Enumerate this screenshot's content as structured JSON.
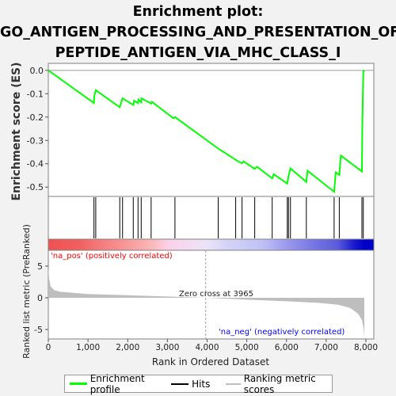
{
  "title_lines": [
    "Enrichment plot:",
    "GO_ANTIGEN_PROCESSING_AND_PRESENTATION_OF_",
    "PEPTIDE_ANTIGEN_VIA_MHC_CLASS_I"
  ],
  "colors": {
    "enrichment_line": "#00ff00",
    "hit_line": "#000000",
    "metric_fill": "#bebebe",
    "zero_line": "#a0a0a0",
    "positive_label": "#ff0000",
    "negative_label": "#0000ff",
    "background": "#f2f2f2"
  },
  "legend": {
    "items": [
      {
        "label": "Enrichment profile",
        "color": "#00ff00",
        "icon": "green-line"
      },
      {
        "label": "Hits",
        "color": "#000000",
        "icon": "black-line"
      },
      {
        "label": "Ranking metric scores",
        "color": "#bebebe",
        "icon": "gray-line"
      }
    ]
  },
  "chart_data": [
    {
      "type": "line",
      "panel": "enrichment",
      "ylabel": "Enrichment score (ES)",
      "ylim": [
        -0.54,
        0.03
      ],
      "xlim": [
        0,
        8200
      ],
      "yticks": [
        0.0,
        -0.1,
        -0.2,
        -0.3,
        -0.4,
        -0.5
      ],
      "ytick_labels": [
        "0.0",
        "-0.1",
        "-0.2",
        "-0.3",
        "-0.4",
        "-0.5"
      ],
      "series": [
        {
          "x": [
            0,
            1150,
            1160,
            1195,
            1800,
            1870,
            2140,
            2160,
            2260,
            2270,
            2340,
            2345,
            2590,
            2610,
            3150,
            3190,
            4280,
            4720,
            4780,
            4880,
            4920,
            5200,
            5260,
            5640,
            5680,
            6020,
            6050,
            6100,
            6500,
            6530,
            7200,
            7240,
            7330,
            7370,
            7900,
            7910,
            7935,
            7960
          ],
          "y": [
            0.0,
            -0.14,
            -0.11,
            -0.085,
            -0.158,
            -0.12,
            -0.148,
            -0.13,
            -0.14,
            -0.125,
            -0.137,
            -0.12,
            -0.142,
            -0.135,
            -0.205,
            -0.2,
            -0.335,
            -0.383,
            -0.39,
            -0.398,
            -0.39,
            -0.422,
            -0.413,
            -0.463,
            -0.445,
            -0.485,
            -0.455,
            -0.42,
            -0.478,
            -0.43,
            -0.52,
            -0.437,
            -0.448,
            -0.365,
            -0.433,
            -0.23,
            -0.005,
            0.0
          ]
        }
      ]
    },
    {
      "type": "hits",
      "panel": "hits",
      "x": [
        1150,
        1195,
        1800,
        1870,
        2140,
        2260,
        2340,
        2590,
        3190,
        4280,
        4720,
        4880,
        5200,
        5640,
        6020,
        6050,
        6100,
        6500,
        7200,
        7330,
        7900,
        7935
      ]
    },
    {
      "type": "heatmap",
      "panel": "rank-bar",
      "color_stops": [
        {
          "x": 0,
          "color": "#f05050"
        },
        {
          "x": 800,
          "color": "#f26060"
        },
        {
          "x": 1300,
          "color": "#f57a7a"
        },
        {
          "x": 2000,
          "color": "#f89a9a"
        },
        {
          "x": 2600,
          "color": "#fab8b8"
        },
        {
          "x": 3000,
          "color": "#fdd0e8"
        },
        {
          "x": 3965,
          "color": "#ece4f8"
        },
        {
          "x": 4500,
          "color": "#d4d4f8"
        },
        {
          "x": 5400,
          "color": "#c0c0f6"
        },
        {
          "x": 6000,
          "color": "#9a9aee"
        },
        {
          "x": 6600,
          "color": "#7a7ae6"
        },
        {
          "x": 7300,
          "color": "#5a5adc"
        },
        {
          "x": 7700,
          "color": "#1a1ad0"
        },
        {
          "x": 7960,
          "color": "#0000c8"
        }
      ]
    },
    {
      "type": "area",
      "panel": "metric",
      "ylabel": "Ranked list metric (PreRanked)",
      "xlabel": "Rank in Ordered Dataset",
      "ylim": [
        -6.5,
        7.5
      ],
      "xlim": [
        0,
        8200
      ],
      "yticks": [
        5,
        0,
        -5
      ],
      "ytick_labels": [
        "5",
        "0",
        "-5"
      ],
      "xticks": [
        0,
        1000,
        2000,
        3000,
        4000,
        5000,
        6000,
        7000,
        8000
      ],
      "xtick_labels": [
        "0",
        "1,000",
        "2,000",
        "3,000",
        "4,000",
        "5,000",
        "6,000",
        "7,000",
        "8,000"
      ],
      "x": [
        0,
        20,
        60,
        150,
        300,
        600,
        1000,
        2000,
        3000,
        3965,
        5000,
        6000,
        6800,
        7300,
        7600,
        7800,
        7900,
        7940,
        7960
      ],
      "y": [
        5.0,
        3.0,
        1.8,
        1.2,
        0.95,
        0.8,
        0.6,
        0.4,
        0.2,
        0.0,
        -0.3,
        -0.55,
        -0.8,
        -1.1,
        -1.6,
        -2.5,
        -3.5,
        -4.8,
        -6.2
      ],
      "zero_cross_label": "Zero cross at 3965",
      "zero_cross_x": 3965,
      "positive_label": "'na_pos' (positively correlated)",
      "negative_label": "'na_neg' (negatively correlated)"
    }
  ]
}
